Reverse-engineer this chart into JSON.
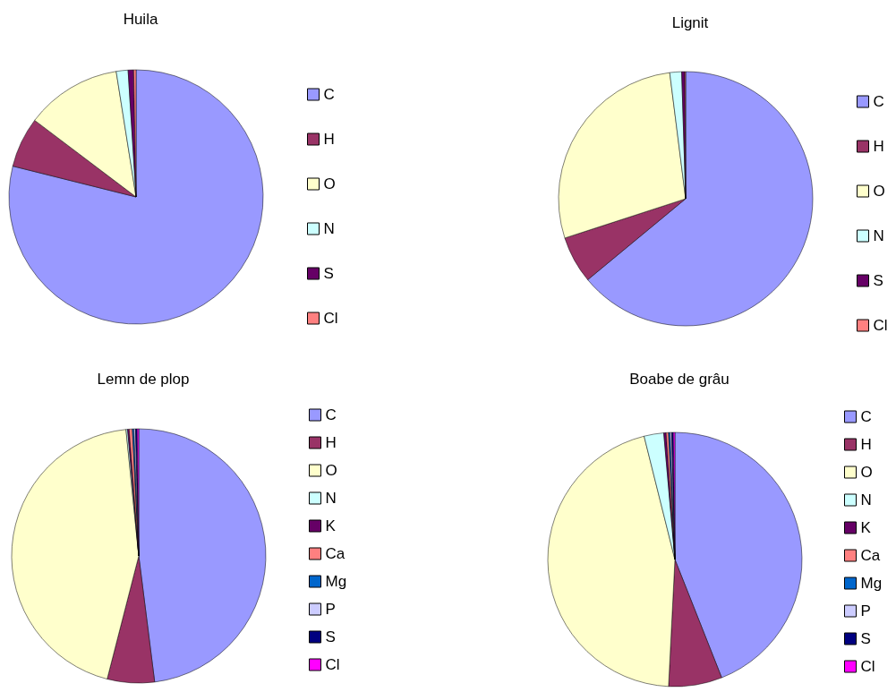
{
  "chart_data": [
    {
      "type": "pie",
      "title": "Huila",
      "legend": "right",
      "categories": [
        "C",
        "H",
        "O",
        "N",
        "S",
        "Cl"
      ],
      "values": [
        78.9,
        6.4,
        12.2,
        1.5,
        0.7,
        0.3
      ],
      "colors": [
        "#9999ff",
        "#993366",
        "#ffffcc",
        "#ccffff",
        "#660066",
        "#ff8080"
      ]
    },
    {
      "type": "pie",
      "title": "Lignit",
      "legend": "right",
      "categories": [
        "C",
        "H",
        "O",
        "N",
        "S",
        "Cl"
      ],
      "values": [
        64,
        6,
        28,
        1.5,
        0.4,
        0.1
      ],
      "colors": [
        "#9999ff",
        "#993366",
        "#ffffcc",
        "#ccffff",
        "#660066",
        "#ff8080"
      ]
    },
    {
      "type": "pie",
      "title": "Lemn de plop",
      "legend": "right",
      "categories": [
        "C",
        "H",
        "O",
        "N",
        "K",
        "Ca",
        "Mg",
        "P",
        "S",
        "Cl"
      ],
      "values": [
        48,
        6,
        44.4,
        0.2,
        0.2,
        0.4,
        0.2,
        0.2,
        0.2,
        0.2
      ],
      "colors": [
        "#9999ff",
        "#993366",
        "#ffffcc",
        "#ccffff",
        "#660066",
        "#ff8080",
        "#0066cc",
        "#ccccff",
        "#000080",
        "#ff00ff"
      ]
    },
    {
      "type": "pie",
      "title": "Boabe de grâu",
      "legend": "right",
      "categories": [
        "C",
        "H",
        "O",
        "N",
        "K",
        "Ca",
        "Mg",
        "P",
        "S",
        "Cl"
      ],
      "values": [
        44,
        6.8,
        45.3,
        2.5,
        0.3,
        0.3,
        0.2,
        0.2,
        0.2,
        0.2
      ],
      "colors": [
        "#9999ff",
        "#993366",
        "#ffffcc",
        "#ccffff",
        "#660066",
        "#ff8080",
        "#0066cc",
        "#ccccff",
        "#000080",
        "#ff00ff"
      ]
    }
  ]
}
